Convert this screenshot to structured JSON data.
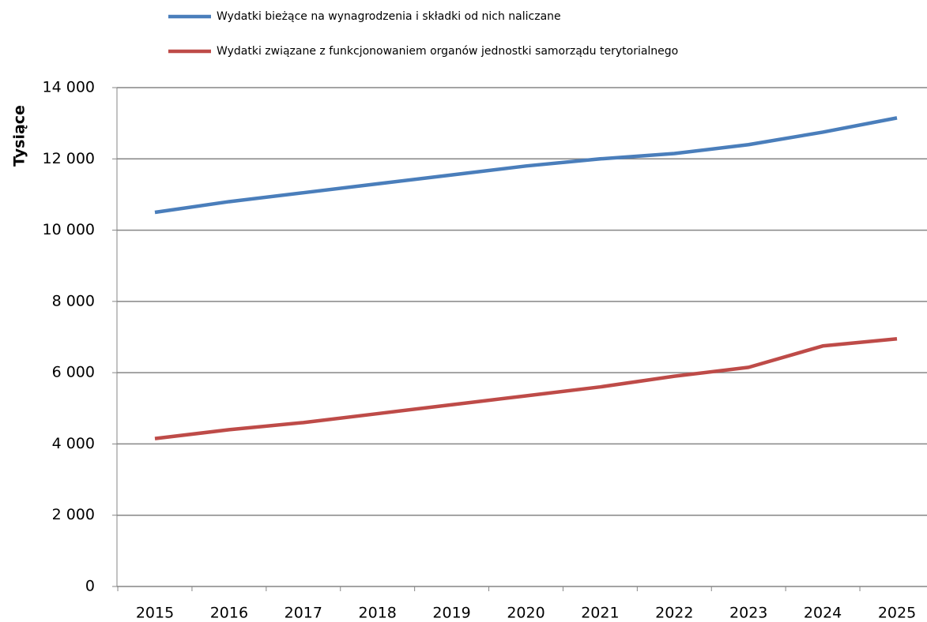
{
  "chart_data": {
    "type": "line",
    "y_label": "Tysiące",
    "categories": [
      "2015",
      "2016",
      "2017",
      "2018",
      "2019",
      "2020",
      "2021",
      "2022",
      "2023",
      "2024",
      "2025"
    ],
    "series": [
      {
        "name": "Wydatki bieżące na wynagrodzenia i składki od nich naliczane",
        "color": "#4a7ebb",
        "values": [
          10500,
          10800,
          11050,
          11300,
          11550,
          11800,
          12000,
          12150,
          12400,
          12750,
          13150
        ]
      },
      {
        "name": "Wydatki związane z funkcjonowaniem organów jednostki samorządu terytorialnego",
        "color": "#be4b48",
        "values": [
          4150,
          4400,
          4600,
          4850,
          5100,
          5350,
          5600,
          5900,
          6150,
          6750,
          6950
        ]
      }
    ],
    "ylim": [
      0,
      14000
    ],
    "yticks": [
      0,
      {
        "value": 2000,
        "label": "2 000"
      },
      {
        "value": 4000,
        "label": "4 000"
      },
      {
        "value": 6000,
        "label": "6 000"
      },
      {
        "value": 8000,
        "label": "8 000"
      },
      {
        "value": 10000,
        "label": "10 000"
      },
      {
        "value": 12000,
        "label": "12 000"
      },
      {
        "value": 14000,
        "label": "14 000"
      }
    ],
    "grid": true,
    "legend": "top"
  }
}
